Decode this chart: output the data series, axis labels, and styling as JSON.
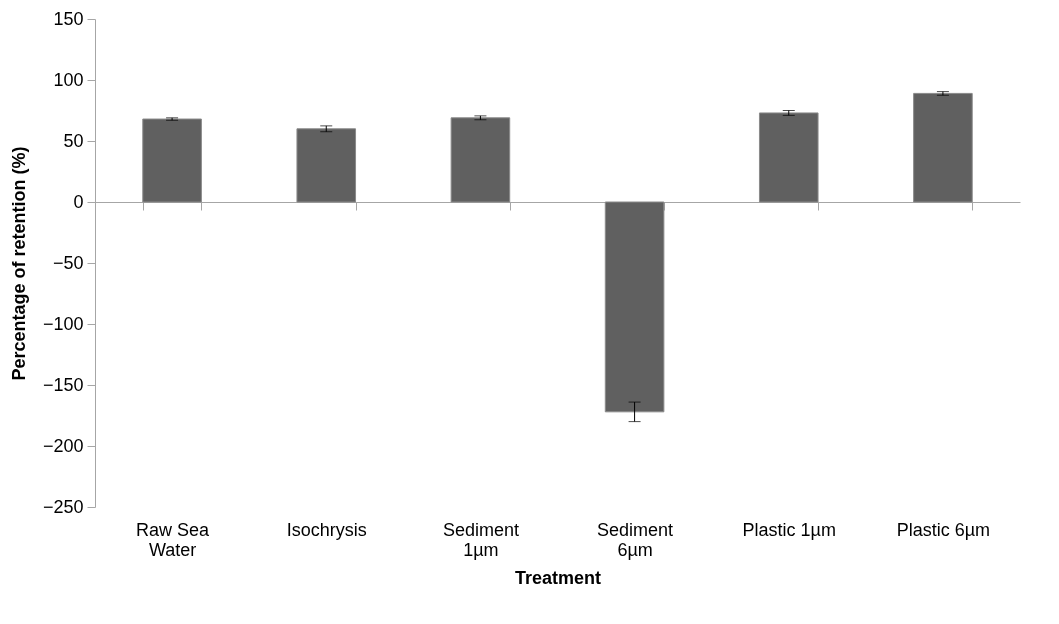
{
  "chart_data": {
    "type": "bar",
    "xlabel": "Treatment",
    "ylabel": "Percentage of retention (%)",
    "categories": [
      "Raw Sea Water",
      "Isochrysis",
      "Sediment 1µm",
      "Sediment 6µm",
      "Plastic 1µm",
      "Plastic 6µm"
    ],
    "values": [
      68,
      60,
      69,
      -172,
      73,
      89
    ],
    "errors": [
      1,
      2.4,
      1.6,
      8,
      2,
      1.5
    ],
    "color": "#606060",
    "ylim": [
      -250,
      150
    ],
    "yticks": [
      -250,
      -200,
      -150,
      -100,
      -50,
      0,
      50,
      100,
      150
    ]
  }
}
